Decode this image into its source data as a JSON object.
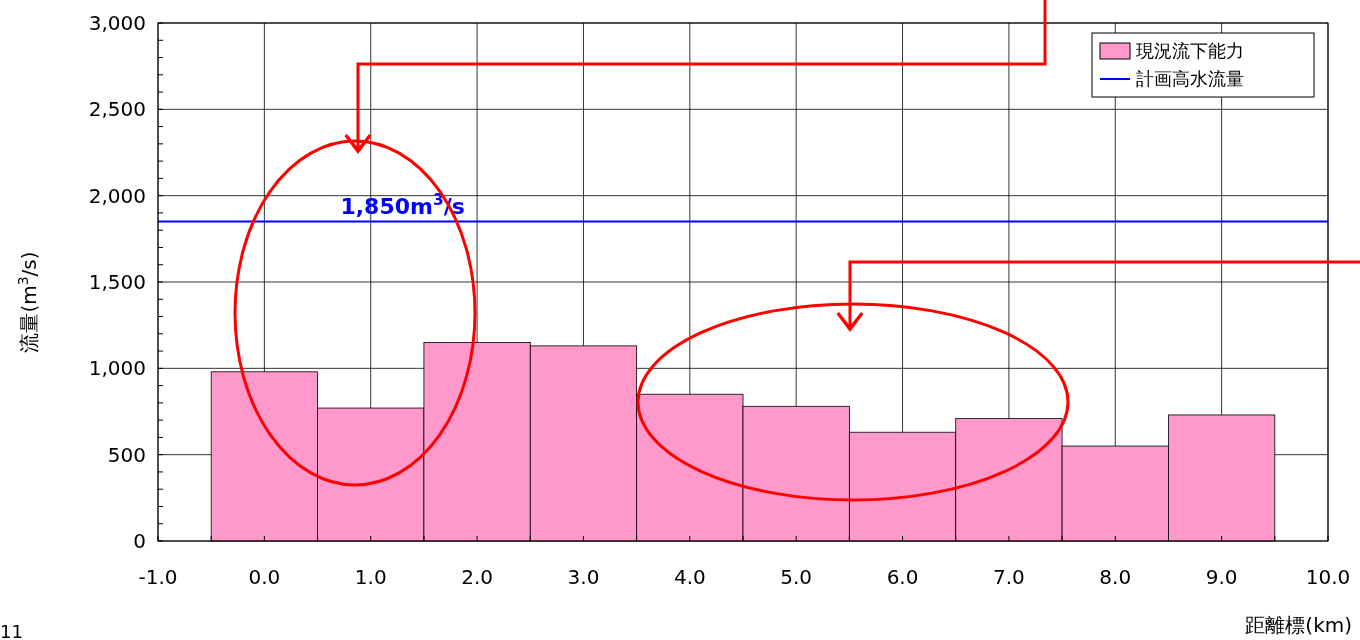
{
  "chart_data": {
    "type": "bar",
    "xlabel": "距離標(km)",
    "ylabel": "流量(m$^{3}$/s)",
    "x": [
      0,
      1,
      2,
      3,
      4,
      5,
      6,
      7,
      8,
      9
    ],
    "series": [
      {
        "name": "現況流下能力",
        "color": "#ff99cc",
        "values": [
          980,
          770,
          1150,
          1130,
          850,
          780,
          630,
          710,
          550,
          730
        ]
      },
      {
        "name": "計画高水流量",
        "type": "line",
        "color": "#0000ff",
        "x": [
          -1,
          10
        ],
        "values": [
          1850,
          1850
        ]
      }
    ],
    "xlim": [
      -1,
      10
    ],
    "xticks": [
      {
        "value": -1,
        "label": "-1.0"
      },
      {
        "value": 0,
        "label": "0.0"
      },
      {
        "value": 1,
        "label": "1.0"
      },
      {
        "value": 2,
        "label": "2.0"
      },
      {
        "value": 3,
        "label": "3.0"
      },
      {
        "value": 4,
        "label": "4.0"
      },
      {
        "value": 5,
        "label": "5.0"
      },
      {
        "value": 6,
        "label": "6.0"
      },
      {
        "value": 7,
        "label": "7.0"
      },
      {
        "value": 8,
        "label": "8.0"
      },
      {
        "value": 9,
        "label": "9.0"
      },
      {
        "value": 10,
        "label": "10.0"
      }
    ],
    "ylim": [
      0,
      3000
    ],
    "yticks": [
      0,
      500,
      {
        "value": 1000,
        "label": "1,000"
      },
      {
        "value": 1500,
        "label": "1,500"
      },
      {
        "value": 2000,
        "label": "2,000"
      },
      {
        "value": 2500,
        "label": "2,500"
      },
      {
        "value": 3000,
        "label": "3,000"
      }
    ],
    "annotations": [
      {
        "text": "1,850m$^{3}$/s",
        "x": 1.3,
        "y": 1850
      },
      "11"
    ],
    "grid": true,
    "legend": "top right"
  }
}
